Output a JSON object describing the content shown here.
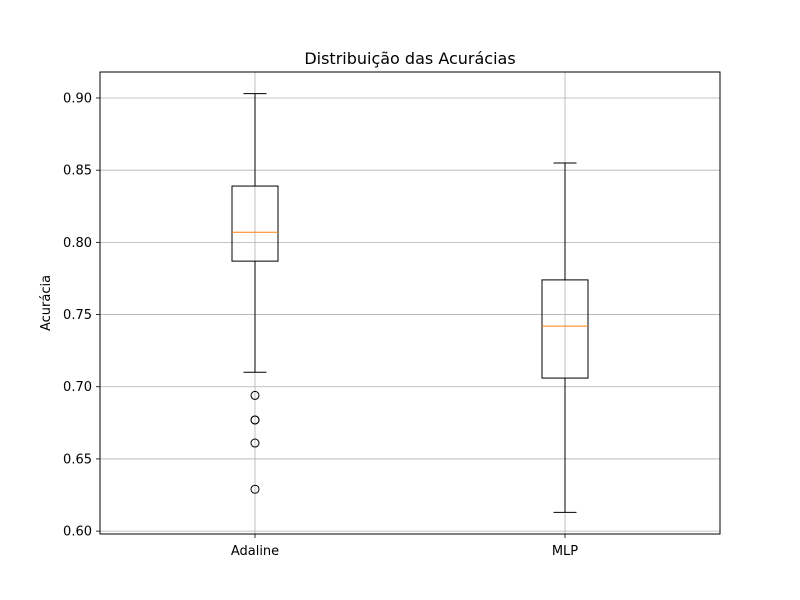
{
  "chart_data": {
    "type": "boxplot",
    "title": "Distribuição das Acurácias",
    "xlabel": "",
    "ylabel": "Acurácia",
    "ylim": [
      0.598,
      0.918
    ],
    "yticks": [
      "0.60",
      "0.65",
      "0.70",
      "0.75",
      "0.80",
      "0.85",
      "0.90"
    ],
    "categories": [
      "Adaline",
      "MLP"
    ],
    "grid": true,
    "colors": {
      "box": "#000000",
      "median": "#ff7f0e",
      "grid": "#b0b0b0"
    },
    "boxes": [
      {
        "category": "Adaline",
        "whisker_low": 0.71,
        "q1": 0.787,
        "median": 0.807,
        "q3": 0.839,
        "whisker_high": 0.903,
        "outliers": [
          0.694,
          0.677,
          0.677,
          0.661,
          0.629
        ]
      },
      {
        "category": "MLP",
        "whisker_low": 0.613,
        "q1": 0.706,
        "median": 0.742,
        "q3": 0.774,
        "whisker_high": 0.855,
        "outliers": []
      }
    ]
  }
}
